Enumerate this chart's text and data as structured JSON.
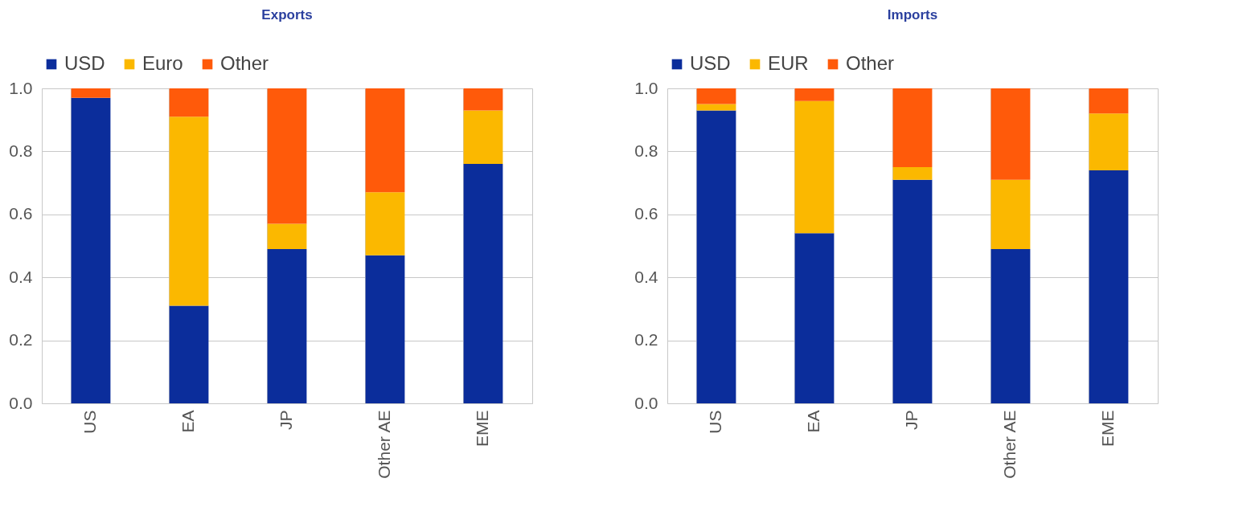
{
  "chart_data": [
    {
      "type": "bar",
      "title": "Exports",
      "categories": [
        "US",
        "EA",
        "JP",
        "Other AE",
        "EME"
      ],
      "stacked": true,
      "ylim": [
        0,
        1
      ],
      "yticks": [
        {
          "value": 0,
          "label": "0.0"
        },
        {
          "value": 0.2,
          "label": "0.2"
        },
        {
          "value": 0.4,
          "label": "0.4"
        },
        {
          "value": 0.6,
          "label": "0.6"
        },
        {
          "value": 0.8,
          "label": "0.8"
        },
        {
          "value": 1,
          "label": "1.0"
        }
      ],
      "grid": true,
      "legend": "top",
      "series": [
        {
          "name": "USD",
          "color": "#0b2d9b",
          "values": [
            0.97,
            0.31,
            0.49,
            0.47,
            0.76
          ]
        },
        {
          "name": "Euro",
          "color": "#fbb800",
          "values": [
            0,
            0.6,
            0.08,
            0.2,
            0.17
          ]
        },
        {
          "name": "Other",
          "color": "#ff5a0a",
          "values": [
            0.03,
            0.09,
            0.43,
            0.33,
            0.07
          ]
        }
      ]
    },
    {
      "type": "bar",
      "title": "Imports",
      "categories": [
        "US",
        "EA",
        "JP",
        "Other AE",
        "EME"
      ],
      "stacked": true,
      "ylim": [
        0,
        1
      ],
      "yticks": [
        {
          "value": 0,
          "label": "0.0"
        },
        {
          "value": 0.2,
          "label": "0.2"
        },
        {
          "value": 0.4,
          "label": "0.4"
        },
        {
          "value": 0.6,
          "label": "0.6"
        },
        {
          "value": 0.8,
          "label": "0.8"
        },
        {
          "value": 1,
          "label": "1.0"
        }
      ],
      "grid": true,
      "legend": "top",
      "series": [
        {
          "name": "USD",
          "color": "#0b2d9b",
          "values": [
            0.93,
            0.54,
            0.71,
            0.49,
            0.74
          ]
        },
        {
          "name": "EUR",
          "color": "#fbb800",
          "values": [
            0.02,
            0.42,
            0.04,
            0.22,
            0.18
          ]
        },
        {
          "name": "Other",
          "color": "#ff5a0a",
          "values": [
            0.05,
            0.04,
            0.25,
            0.29,
            0.08
          ]
        }
      ]
    }
  ]
}
